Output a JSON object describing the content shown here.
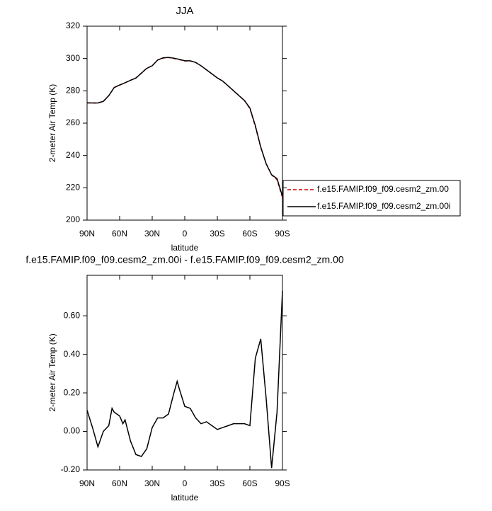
{
  "chart_data": [
    {
      "type": "line",
      "title": "JJA",
      "xlabel": "latitude",
      "ylabel": "2-meter Air Temp (K)",
      "x": [
        90,
        85,
        80,
        75,
        70,
        65,
        60,
        55,
        50,
        45,
        40,
        35,
        30,
        25,
        20,
        15,
        10,
        5,
        0,
        -5,
        -10,
        -15,
        -20,
        -25,
        -30,
        -35,
        -40,
        -45,
        -50,
        -55,
        -60,
        -65,
        -70,
        -75,
        -80,
        -85,
        -90
      ],
      "series": [
        {
          "name": "f.e15.FAMIP.f09_f09.cesm2_zm.00",
          "color": "#cc0000",
          "dashed": true,
          "values": [
            272.5,
            272.5,
            272.5,
            273.5,
            277,
            282,
            283.5,
            285,
            286.5,
            288,
            291,
            294,
            295.5,
            299,
            300.3,
            300.6,
            300,
            299.3,
            298.5,
            298.5,
            297.5,
            295.5,
            293,
            290.5,
            288,
            286,
            283,
            280,
            277,
            274,
            269,
            258,
            245,
            235,
            228,
            225,
            214
          ]
        },
        {
          "name": "f.e15.FAMIP.f09_f09.cesm2_zm.00i",
          "color": "#000000",
          "dashed": false,
          "values": [
            272.6,
            272.5,
            272.5,
            273.5,
            277,
            282.1,
            283.6,
            285,
            286.5,
            287.9,
            290.9,
            293.9,
            295.5,
            299.1,
            300.4,
            300.7,
            300.2,
            299.5,
            298.6,
            298.6,
            297.6,
            295.5,
            293,
            290.5,
            288,
            286,
            283,
            280,
            277,
            274,
            269.4,
            258.5,
            245.2,
            234.8,
            228.1,
            225.7,
            214.7
          ]
        }
      ],
      "xlim": [
        90,
        -90
      ],
      "xticks": [
        {
          "value": 90,
          "label": "90N"
        },
        {
          "value": 60,
          "label": "60N"
        },
        {
          "value": 30,
          "label": "30N"
        },
        0,
        {
          "value": -30,
          "label": "30S"
        },
        {
          "value": -60,
          "label": "60S"
        },
        {
          "value": -90,
          "label": "90S"
        }
      ],
      "ylim": [
        200,
        320
      ],
      "yticks": [
        200,
        220,
        240,
        260,
        280,
        300,
        320
      ],
      "legend": "right"
    },
    {
      "type": "line",
      "title": "f.e15.FAMIP.f09_f09.cesm2_zm.00i - f.e15.FAMIP.f09_f09.cesm2_zm.00",
      "xlabel": "latitude",
      "ylabel": "2-meter Air Temp (K)",
      "x": [
        90,
        85,
        80,
        75,
        70,
        67,
        65,
        60,
        57,
        55,
        50,
        45,
        40,
        35,
        30,
        25,
        20,
        15,
        10,
        7,
        5,
        0,
        -5,
        -10,
        -15,
        -20,
        -25,
        -30,
        -35,
        -40,
        -45,
        -50,
        -55,
        -60,
        -65,
        -70,
        -75,
        -80,
        -85,
        -90
      ],
      "values": [
        0.11,
        0.02,
        -0.08,
        0.0,
        0.03,
        0.12,
        0.1,
        0.08,
        0.04,
        0.06,
        -0.05,
        -0.12,
        -0.13,
        -0.09,
        0.02,
        0.07,
        0.07,
        0.09,
        0.2,
        0.26,
        0.22,
        0.13,
        0.12,
        0.07,
        0.04,
        0.05,
        0.03,
        0.01,
        0.02,
        0.03,
        0.04,
        0.04,
        0.04,
        0.03,
        0.38,
        0.48,
        0.17,
        -0.19,
        0.1,
        0.73
      ],
      "color": "#000000",
      "xlim": [
        90,
        -90
      ],
      "xticks": [
        {
          "value": 90,
          "label": "90N"
        },
        {
          "value": 60,
          "label": "60N"
        },
        {
          "value": 30,
          "label": "30N"
        },
        0,
        {
          "value": -30,
          "label": "30S"
        },
        {
          "value": -60,
          "label": "60S"
        },
        {
          "value": -90,
          "label": "90S"
        }
      ],
      "ylim": [
        -0.2,
        0.81
      ],
      "yticks": [
        {
          "value": -0.2,
          "label": "-0.20"
        },
        {
          "value": 0,
          "label": "0.00"
        },
        {
          "value": 0.2,
          "label": "0.20"
        },
        {
          "value": 0.4,
          "label": "0.40"
        },
        {
          "value": 0.6,
          "label": "0.60"
        }
      ]
    }
  ]
}
